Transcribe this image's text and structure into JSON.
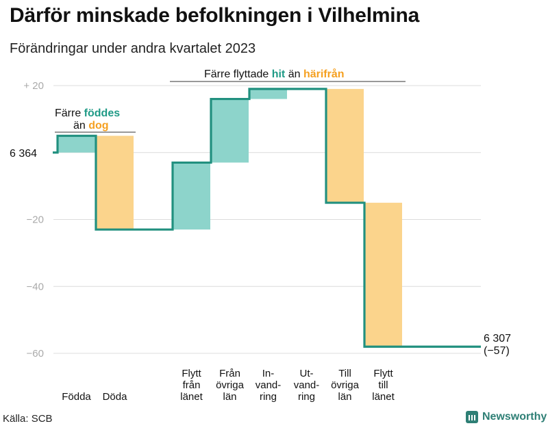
{
  "title": "Därför minskade befolkningen i Vilhelmina",
  "subtitle": "Förändringar under andra kvartalet 2023",
  "source": "Källa: SCB",
  "brand": "Newsworthy",
  "colors": {
    "teal": "#8dd4cb",
    "orange": "#fbd48c",
    "line": "#21907f",
    "teal_text": "#1f9a86",
    "orange_text": "#f5a020"
  },
  "chart_data": {
    "type": "waterfall",
    "title": "Därför minskade befolkningen i Vilhelmina",
    "start_label": "6 364",
    "end_label": "6 307",
    "end_change": "(−57)",
    "ylim": [
      -60,
      20
    ],
    "yticks": [
      {
        "value": 20,
        "label": "+  20"
      },
      {
        "value": 0,
        "label": ""
      },
      {
        "value": -20,
        "label": "−20"
      },
      {
        "value": -40,
        "label": "−40"
      },
      {
        "value": -60,
        "label": "−60"
      }
    ],
    "steps": [
      {
        "category": "Födda",
        "lines": [
          "Födda"
        ],
        "change": 5,
        "kind": "inflow"
      },
      {
        "category": "Döda",
        "lines": [
          "Döda"
        ],
        "change": -28,
        "kind": "outflow"
      },
      {
        "category": "Flytt från länet",
        "lines": [
          "Flytt",
          "från",
          "länet"
        ],
        "change": 20,
        "kind": "inflow"
      },
      {
        "category": "Från övriga län",
        "lines": [
          "Från",
          "övriga",
          "län"
        ],
        "change": 19,
        "kind": "inflow"
      },
      {
        "category": "Invandring",
        "lines": [
          "In-",
          "vand-",
          "ring"
        ],
        "change": 3,
        "kind": "inflow"
      },
      {
        "category": "Utvandring",
        "lines": [
          "Ut-",
          "vand-",
          "ring"
        ],
        "change": 0,
        "kind": "outflow"
      },
      {
        "category": "Till övriga län",
        "lines": [
          "Till",
          "övriga",
          "län"
        ],
        "change": -34,
        "kind": "outflow"
      },
      {
        "category": "Flytt till länet",
        "lines": [
          "Flytt",
          "till",
          "länet"
        ],
        "change": -43,
        "kind": "outflow"
      }
    ],
    "annotations": [
      {
        "prefix": "Färre ",
        "highlight": "föddes",
        "color": "teal"
      },
      {
        "prefix": "än ",
        "highlight": "dog",
        "color": "orange"
      },
      {
        "prefix": "Färre flyttade ",
        "highlight": "hit",
        "middle": " än ",
        "highlight2": "härifrån"
      }
    ]
  }
}
